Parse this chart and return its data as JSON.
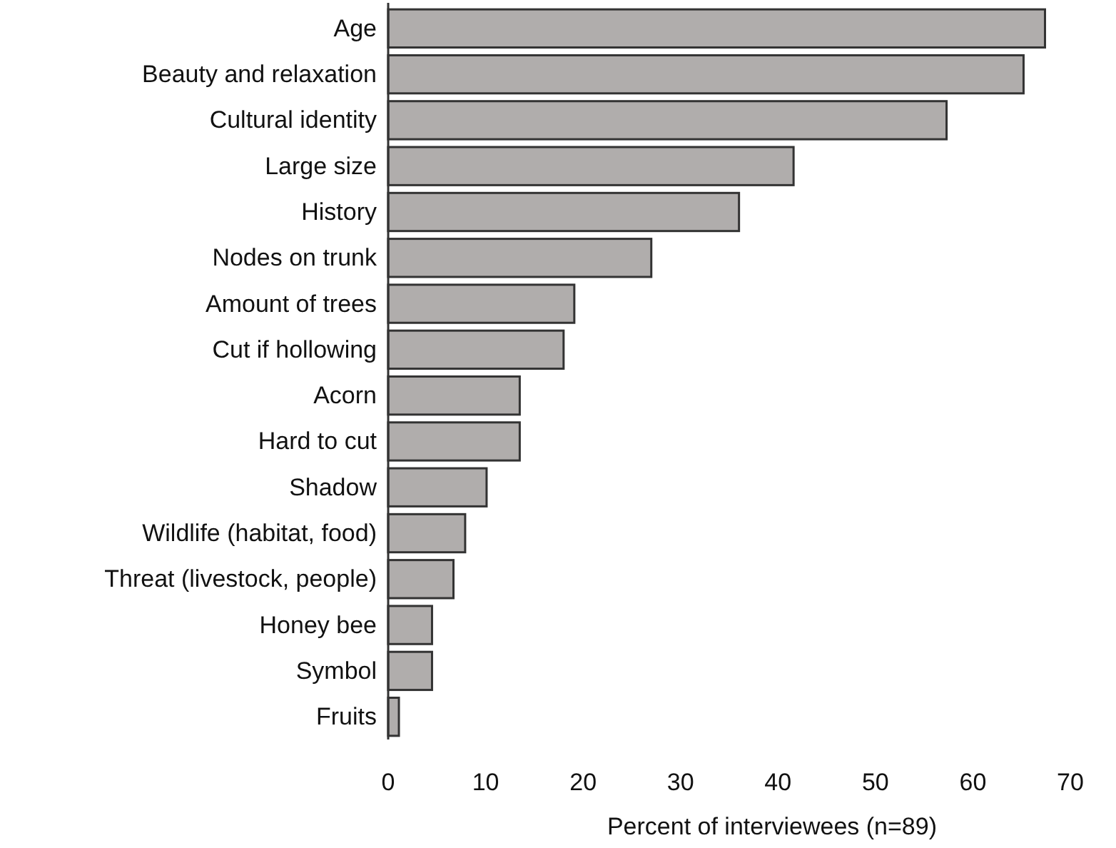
{
  "chart_data": {
    "type": "bar",
    "orientation": "horizontal",
    "xlabel": "Percent of interviewees (n=89)",
    "categories": [
      "Age",
      "Beauty and relaxation",
      "Cultural identity",
      "Large size",
      "History",
      "Nodes on trunk",
      "Amount of trees",
      "Cut if hollowing",
      "Acorn",
      "Hard to cut",
      "Shadow",
      "Wildlife (habitat, food)",
      "Threat (livestock, people)",
      "Honey bee",
      "Symbol",
      "Fruits"
    ],
    "values": [
      67.4,
      65.2,
      57.3,
      41.6,
      36.0,
      27.0,
      19.1,
      18.0,
      13.5,
      13.5,
      10.1,
      7.9,
      6.7,
      4.5,
      4.5,
      1.1
    ],
    "color": "#b0adac",
    "xlim": [
      0,
      70
    ],
    "xticks": [
      0,
      10,
      20,
      30,
      40,
      50,
      60,
      70
    ],
    "grid": false
  }
}
